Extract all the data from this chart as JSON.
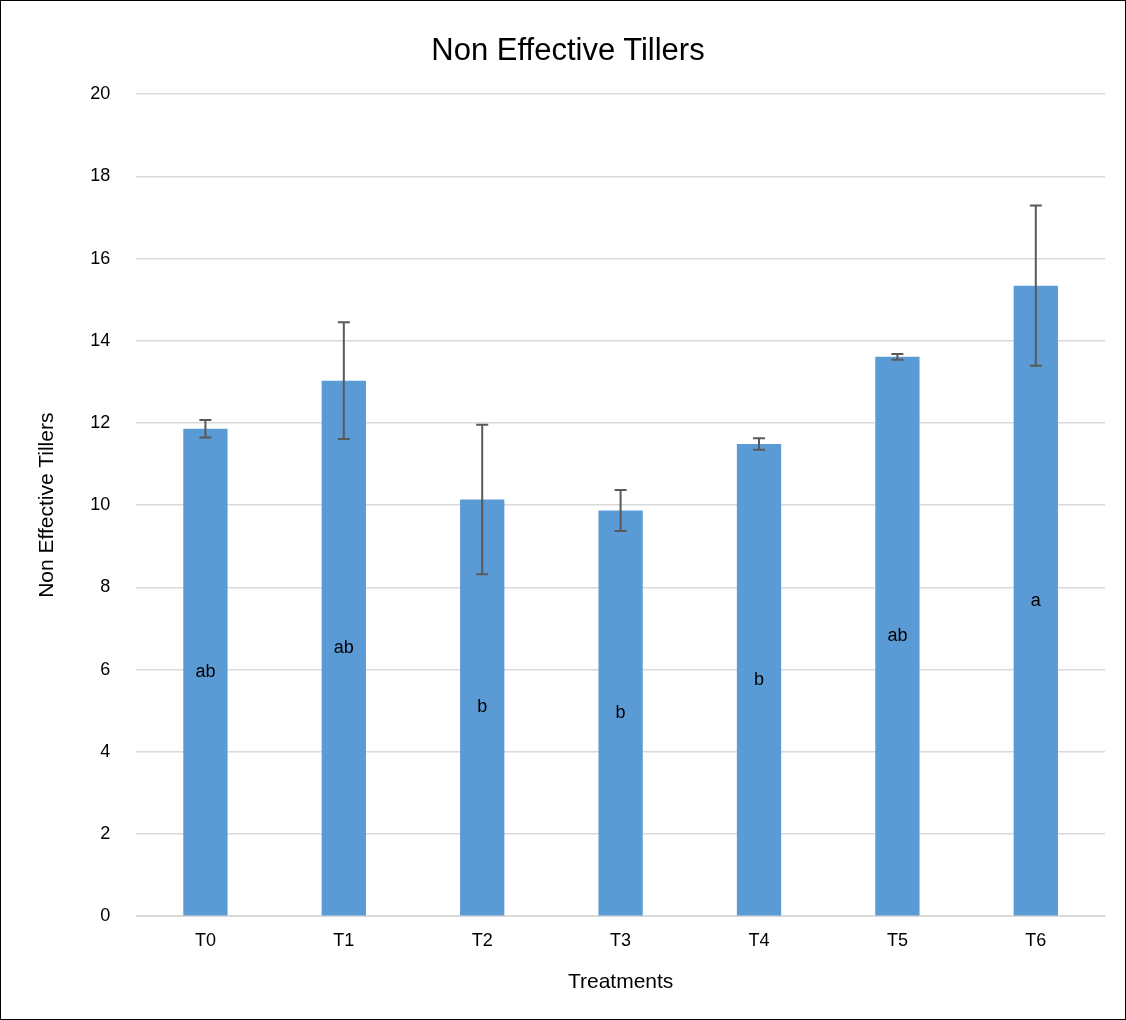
{
  "chart_data": {
    "type": "bar",
    "title": "Non Effective Tillers",
    "xlabel": "Treatments",
    "ylabel": "Non Effective Tillers",
    "categories": [
      "T0",
      "T1",
      "T2",
      "T3",
      "T4",
      "T5",
      "T6"
    ],
    "values": [
      11.86,
      13.03,
      10.14,
      9.87,
      11.49,
      13.61,
      15.34
    ],
    "errors": [
      0.21,
      1.42,
      1.82,
      0.5,
      0.14,
      0.07,
      1.95
    ],
    "color": "#5b9bd5",
    "ylim": [
      0,
      20
    ],
    "yticks": [
      0,
      2,
      4,
      6,
      8,
      10,
      12,
      14,
      16,
      18,
      20
    ],
    "grid": "y",
    "legend": false,
    "annotations": [
      "ab",
      "ab",
      "b",
      "b",
      "b",
      "ab",
      "a"
    ]
  }
}
